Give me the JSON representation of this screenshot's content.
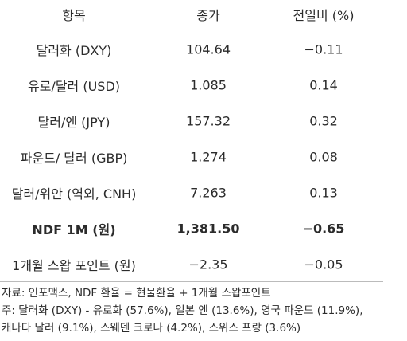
{
  "table": {
    "header": [
      "항목",
      "종가",
      "전일비 (%)"
    ],
    "rows": [
      [
        "달러화 (DXY)",
        "104.64",
        "−0.11"
      ],
      [
        "유로/달러 (USD)",
        "1.085",
        "0.14"
      ],
      [
        "달러/엔 (JPY)",
        "157.32",
        "0.32"
      ],
      [
        "파운드/ 달러 (GBP)",
        "1.274",
        "0.08"
      ],
      [
        "달러/위안 (역외, CNH)",
        "7.263",
        "0.13"
      ],
      [
        "NDF 1M (원)",
        "1,381.50",
        "−0.65"
      ],
      [
        "1개월 스왑 포인트 (원)",
        "−2.35",
        "−0.05"
      ]
    ]
  },
  "notes": [
    "자료: 인포맥스, NDF 환율 = 현물환율 + 1개월 스왑포인트",
    "주: 달러화 (DXY) - 유로화 (57.6%), 일본 엔 (13.6%), 영국 파운드 (11.9%),",
    "캐나다 달러 (9.1%), 스웨덴 크로나 (4.2%), 스위스 프랑 (3.6%)"
  ]
}
